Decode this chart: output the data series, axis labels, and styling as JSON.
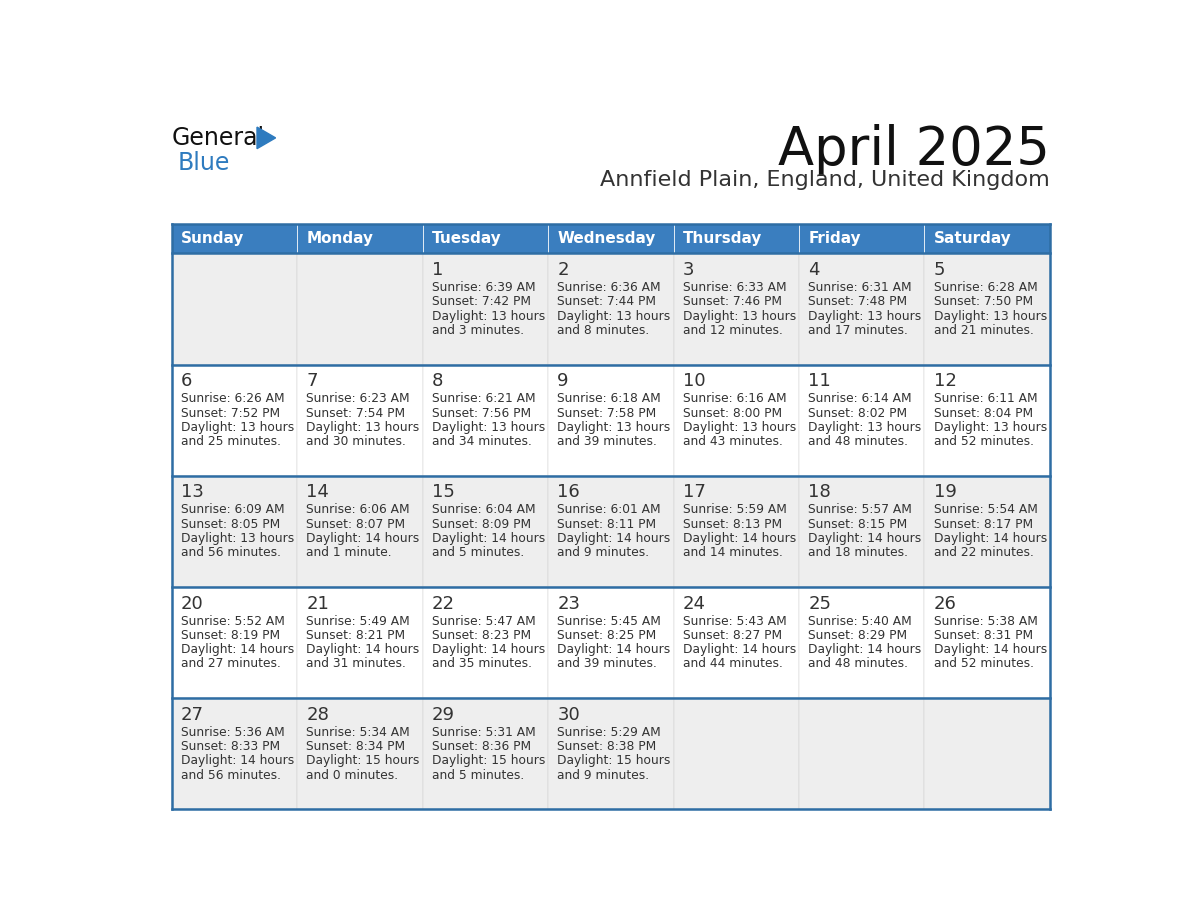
{
  "title": "April 2025",
  "subtitle": "Annfield Plain, England, United Kingdom",
  "days_of_week": [
    "Sunday",
    "Monday",
    "Tuesday",
    "Wednesday",
    "Thursday",
    "Friday",
    "Saturday"
  ],
  "header_bg": "#3a7ebf",
  "header_text": "#ffffff",
  "row_bg_odd": "#eeeeee",
  "row_bg_even": "#ffffff",
  "border_color": "#2e6da4",
  "text_color": "#333333",
  "title_color": "#111111",
  "subtitle_color": "#333333",
  "logo_general_color": "#111111",
  "logo_blue_color": "#2e7bbf",
  "calendar_data": [
    [
      {
        "day": null,
        "sunrise": null,
        "sunset": null,
        "daylight": null
      },
      {
        "day": null,
        "sunrise": null,
        "sunset": null,
        "daylight": null
      },
      {
        "day": 1,
        "sunrise": "6:39 AM",
        "sunset": "7:42 PM",
        "daylight_line1": "Daylight: 13 hours",
        "daylight_line2": "and 3 minutes."
      },
      {
        "day": 2,
        "sunrise": "6:36 AM",
        "sunset": "7:44 PM",
        "daylight_line1": "Daylight: 13 hours",
        "daylight_line2": "and 8 minutes."
      },
      {
        "day": 3,
        "sunrise": "6:33 AM",
        "sunset": "7:46 PM",
        "daylight_line1": "Daylight: 13 hours",
        "daylight_line2": "and 12 minutes."
      },
      {
        "day": 4,
        "sunrise": "6:31 AM",
        "sunset": "7:48 PM",
        "daylight_line1": "Daylight: 13 hours",
        "daylight_line2": "and 17 minutes."
      },
      {
        "day": 5,
        "sunrise": "6:28 AM",
        "sunset": "7:50 PM",
        "daylight_line1": "Daylight: 13 hours",
        "daylight_line2": "and 21 minutes."
      }
    ],
    [
      {
        "day": 6,
        "sunrise": "6:26 AM",
        "sunset": "7:52 PM",
        "daylight_line1": "Daylight: 13 hours",
        "daylight_line2": "and 25 minutes."
      },
      {
        "day": 7,
        "sunrise": "6:23 AM",
        "sunset": "7:54 PM",
        "daylight_line1": "Daylight: 13 hours",
        "daylight_line2": "and 30 minutes."
      },
      {
        "day": 8,
        "sunrise": "6:21 AM",
        "sunset": "7:56 PM",
        "daylight_line1": "Daylight: 13 hours",
        "daylight_line2": "and 34 minutes."
      },
      {
        "day": 9,
        "sunrise": "6:18 AM",
        "sunset": "7:58 PM",
        "daylight_line1": "Daylight: 13 hours",
        "daylight_line2": "and 39 minutes."
      },
      {
        "day": 10,
        "sunrise": "6:16 AM",
        "sunset": "8:00 PM",
        "daylight_line1": "Daylight: 13 hours",
        "daylight_line2": "and 43 minutes."
      },
      {
        "day": 11,
        "sunrise": "6:14 AM",
        "sunset": "8:02 PM",
        "daylight_line1": "Daylight: 13 hours",
        "daylight_line2": "and 48 minutes."
      },
      {
        "day": 12,
        "sunrise": "6:11 AM",
        "sunset": "8:04 PM",
        "daylight_line1": "Daylight: 13 hours",
        "daylight_line2": "and 52 minutes."
      }
    ],
    [
      {
        "day": 13,
        "sunrise": "6:09 AM",
        "sunset": "8:05 PM",
        "daylight_line1": "Daylight: 13 hours",
        "daylight_line2": "and 56 minutes."
      },
      {
        "day": 14,
        "sunrise": "6:06 AM",
        "sunset": "8:07 PM",
        "daylight_line1": "Daylight: 14 hours",
        "daylight_line2": "and 1 minute."
      },
      {
        "day": 15,
        "sunrise": "6:04 AM",
        "sunset": "8:09 PM",
        "daylight_line1": "Daylight: 14 hours",
        "daylight_line2": "and 5 minutes."
      },
      {
        "day": 16,
        "sunrise": "6:01 AM",
        "sunset": "8:11 PM",
        "daylight_line1": "Daylight: 14 hours",
        "daylight_line2": "and 9 minutes."
      },
      {
        "day": 17,
        "sunrise": "5:59 AM",
        "sunset": "8:13 PM",
        "daylight_line1": "Daylight: 14 hours",
        "daylight_line2": "and 14 minutes."
      },
      {
        "day": 18,
        "sunrise": "5:57 AM",
        "sunset": "8:15 PM",
        "daylight_line1": "Daylight: 14 hours",
        "daylight_line2": "and 18 minutes."
      },
      {
        "day": 19,
        "sunrise": "5:54 AM",
        "sunset": "8:17 PM",
        "daylight_line1": "Daylight: 14 hours",
        "daylight_line2": "and 22 minutes."
      }
    ],
    [
      {
        "day": 20,
        "sunrise": "5:52 AM",
        "sunset": "8:19 PM",
        "daylight_line1": "Daylight: 14 hours",
        "daylight_line2": "and 27 minutes."
      },
      {
        "day": 21,
        "sunrise": "5:49 AM",
        "sunset": "8:21 PM",
        "daylight_line1": "Daylight: 14 hours",
        "daylight_line2": "and 31 minutes."
      },
      {
        "day": 22,
        "sunrise": "5:47 AM",
        "sunset": "8:23 PM",
        "daylight_line1": "Daylight: 14 hours",
        "daylight_line2": "and 35 minutes."
      },
      {
        "day": 23,
        "sunrise": "5:45 AM",
        "sunset": "8:25 PM",
        "daylight_line1": "Daylight: 14 hours",
        "daylight_line2": "and 39 minutes."
      },
      {
        "day": 24,
        "sunrise": "5:43 AM",
        "sunset": "8:27 PM",
        "daylight_line1": "Daylight: 14 hours",
        "daylight_line2": "and 44 minutes."
      },
      {
        "day": 25,
        "sunrise": "5:40 AM",
        "sunset": "8:29 PM",
        "daylight_line1": "Daylight: 14 hours",
        "daylight_line2": "and 48 minutes."
      },
      {
        "day": 26,
        "sunrise": "5:38 AM",
        "sunset": "8:31 PM",
        "daylight_line1": "Daylight: 14 hours",
        "daylight_line2": "and 52 minutes."
      }
    ],
    [
      {
        "day": 27,
        "sunrise": "5:36 AM",
        "sunset": "8:33 PM",
        "daylight_line1": "Daylight: 14 hours",
        "daylight_line2": "and 56 minutes."
      },
      {
        "day": 28,
        "sunrise": "5:34 AM",
        "sunset": "8:34 PM",
        "daylight_line1": "Daylight: 15 hours",
        "daylight_line2": "and 0 minutes."
      },
      {
        "day": 29,
        "sunrise": "5:31 AM",
        "sunset": "8:36 PM",
        "daylight_line1": "Daylight: 15 hours",
        "daylight_line2": "and 5 minutes."
      },
      {
        "day": 30,
        "sunrise": "5:29 AM",
        "sunset": "8:38 PM",
        "daylight_line1": "Daylight: 15 hours",
        "daylight_line2": "and 9 minutes."
      },
      {
        "day": null,
        "sunrise": null,
        "sunset": null,
        "daylight_line1": null,
        "daylight_line2": null
      },
      {
        "day": null,
        "sunrise": null,
        "sunset": null,
        "daylight_line1": null,
        "daylight_line2": null
      },
      {
        "day": null,
        "sunrise": null,
        "sunset": null,
        "daylight_line1": null,
        "daylight_line2": null
      }
    ]
  ],
  "num_weeks": 5,
  "num_cols": 7
}
